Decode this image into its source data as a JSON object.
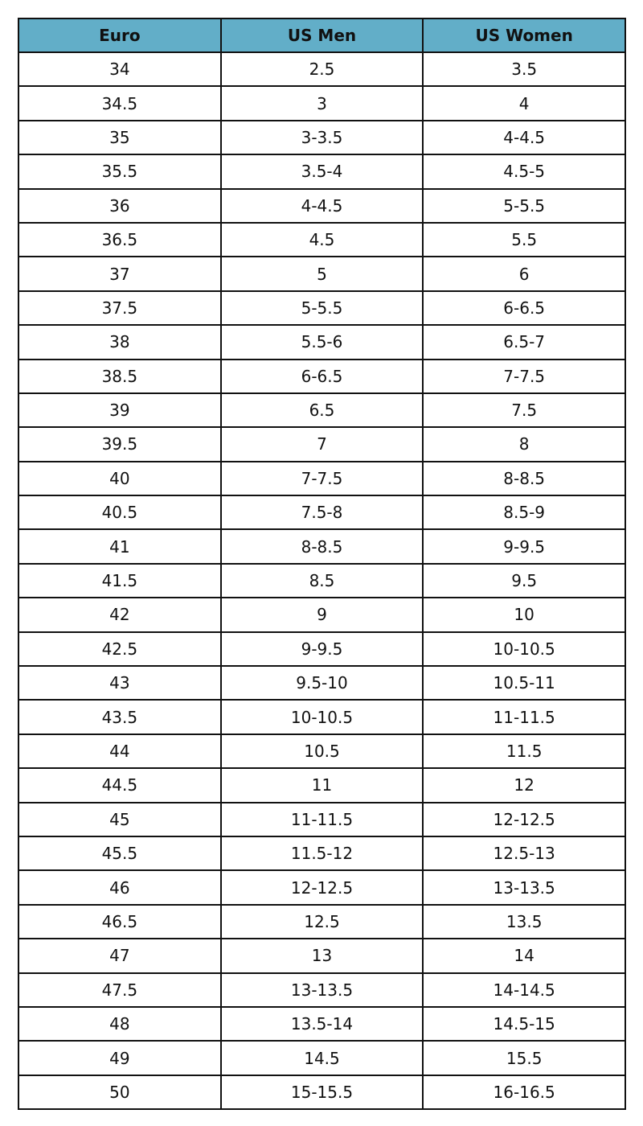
{
  "table": {
    "header_color": "#62aec8",
    "columns": [
      "Euro",
      "US Men",
      "US Women"
    ],
    "rows": [
      [
        "34",
        "2.5",
        "3.5"
      ],
      [
        "34.5",
        "3",
        "4"
      ],
      [
        "35",
        "3-3.5",
        "4-4.5"
      ],
      [
        "35.5",
        "3.5-4",
        "4.5-5"
      ],
      [
        "36",
        "4-4.5",
        "5-5.5"
      ],
      [
        "36.5",
        "4.5",
        "5.5"
      ],
      [
        "37",
        "5",
        "6"
      ],
      [
        "37.5",
        "5-5.5",
        "6-6.5"
      ],
      [
        "38",
        "5.5-6",
        "6.5-7"
      ],
      [
        "38.5",
        "6-6.5",
        "7-7.5"
      ],
      [
        "39",
        "6.5",
        "7.5"
      ],
      [
        "39.5",
        "7",
        "8"
      ],
      [
        "40",
        "7-7.5",
        "8-8.5"
      ],
      [
        "40.5",
        "7.5-8",
        "8.5-9"
      ],
      [
        "41",
        "8-8.5",
        "9-9.5"
      ],
      [
        "41.5",
        "8.5",
        "9.5"
      ],
      [
        "42",
        "9",
        "10"
      ],
      [
        "42.5",
        "9-9.5",
        "10-10.5"
      ],
      [
        "43",
        "9.5-10",
        "10.5-11"
      ],
      [
        "43.5",
        "10-10.5",
        "11-11.5"
      ],
      [
        "44",
        "10.5",
        "11.5"
      ],
      [
        "44.5",
        "11",
        "12"
      ],
      [
        "45",
        "11-11.5",
        "12-12.5"
      ],
      [
        "45.5",
        "11.5-12",
        "12.5-13"
      ],
      [
        "46",
        "12-12.5",
        "13-13.5"
      ],
      [
        "46.5",
        "12.5",
        "13.5"
      ],
      [
        "47",
        "13",
        "14"
      ],
      [
        "47.5",
        "13-13.5",
        "14-14.5"
      ],
      [
        "48",
        "13.5-14",
        "14.5-15"
      ],
      [
        "49",
        "14.5",
        "15.5"
      ],
      [
        "50",
        "15-15.5",
        "16-16.5"
      ]
    ]
  }
}
